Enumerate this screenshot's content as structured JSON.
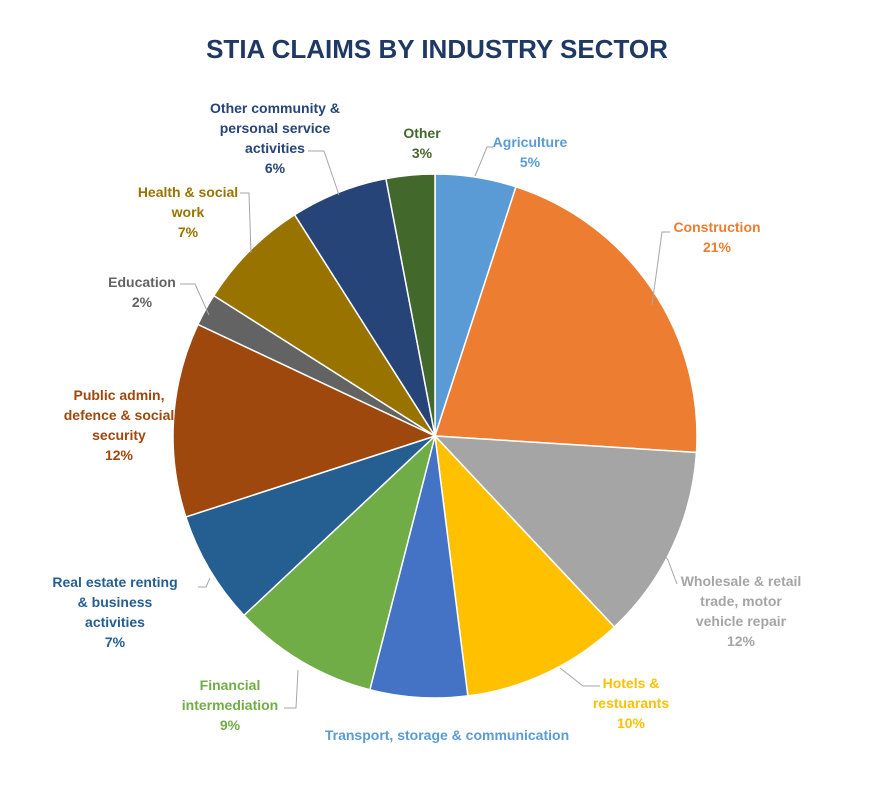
{
  "chart_data": {
    "type": "pie",
    "title": "STIA CLAIMS BY INDUSTRY SECTOR",
    "title_color": "#1f3864",
    "slices": [
      {
        "name": "Agriculture",
        "lines": [
          "Agriculture"
        ],
        "label": "5%",
        "value": 5,
        "color": "#5b9bd5",
        "label_color": "#5b9bd5"
      },
      {
        "name": "Construction",
        "lines": [
          "Construction"
        ],
        "label": "21%",
        "value": 21,
        "color": "#ed7d31",
        "label_color": "#ed7d31"
      },
      {
        "name": "Wholesale & retail trade, motor vehicle repair",
        "lines": [
          "Wholesale & retail",
          "trade, motor",
          "vehicle repair"
        ],
        "label": "12%",
        "value": 12,
        "color": "#a5a5a5",
        "label_color": "#a5a5a5"
      },
      {
        "name": "Hotels & restuarants",
        "lines": [
          "Hotels &",
          "restuarants"
        ],
        "label": "10%",
        "value": 10,
        "color": "#ffc000",
        "label_color": "#ffc000"
      },
      {
        "name": "Transport, storage & communication",
        "lines": [
          "Transport, storage & communication"
        ],
        "label": "",
        "value": 6,
        "color": "#4472c4",
        "label_color": "#5b9bd5"
      },
      {
        "name": "Financial intermediation",
        "lines": [
          "Financial",
          "intermediation"
        ],
        "label": "9%",
        "value": 9,
        "color": "#70ad47",
        "label_color": "#70ad47"
      },
      {
        "name": "Real estate renting & business activities",
        "lines": [
          "Real estate renting",
          "& business",
          "activities"
        ],
        "label": "7%",
        "value": 7,
        "color": "#255e91",
        "label_color": "#255e91"
      },
      {
        "name": "Public admin, defence & social security",
        "lines": [
          "Public admin,",
          "defence & social",
          "security"
        ],
        "label": "12%",
        "value": 12,
        "color": "#9e480e",
        "label_color": "#9e480e"
      },
      {
        "name": "Education",
        "lines": [
          "Education"
        ],
        "label": "2%",
        "value": 2,
        "color": "#636363",
        "label_color": "#636363"
      },
      {
        "name": "Health & social work",
        "lines": [
          "Health & social",
          "work"
        ],
        "label": "7%",
        "value": 7,
        "color": "#997300",
        "label_color": "#997300"
      },
      {
        "name": "Other community & personal service activities",
        "lines": [
          "Other community &",
          "personal service",
          "activities"
        ],
        "label": "6%",
        "value": 6,
        "color": "#264478",
        "label_color": "#264478"
      },
      {
        "name": "Other",
        "lines": [
          "Other"
        ],
        "label": "3%",
        "value": 3,
        "color": "#43682b",
        "label_color": "#43682b"
      }
    ]
  }
}
